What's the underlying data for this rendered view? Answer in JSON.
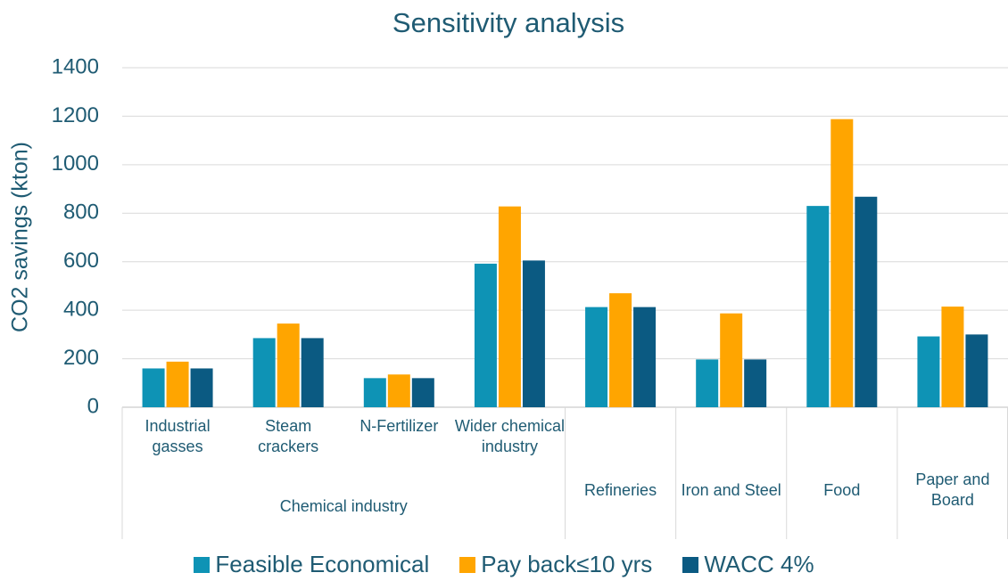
{
  "chart_data": {
    "type": "bar",
    "title": "Sensitivity analysis",
    "y_label": "CO2 savings (kton)",
    "categories": [
      "Industrial gasses",
      "Steam crackers",
      "N-Fertilizer",
      "Wider chemical industry",
      "Refineries",
      "Iron and Steel",
      "Food",
      "Paper and Board"
    ],
    "category_groups": [
      "Chemical industry",
      "Chemical industry",
      "Chemical industry",
      "Chemical industry",
      null,
      null,
      null,
      null
    ],
    "series": [
      {
        "name": "Feasible Economical",
        "color": "#0e93b5",
        "values": [
          160,
          285,
          120,
          592,
          413,
          197,
          830,
          292
        ]
      },
      {
        "name": "Pay back≤10 yrs",
        "color": "#ffa500",
        "values": [
          188,
          345,
          135,
          828,
          470,
          387,
          1188,
          415
        ]
      },
      {
        "name": "WACC 4%",
        "color": "#0b5a82",
        "values": [
          160,
          285,
          120,
          605,
          413,
          197,
          868,
          300
        ]
      }
    ],
    "ylim": [
      0,
      1400
    ],
    "yticks": [
      0,
      200,
      400,
      600,
      800,
      1000,
      1200,
      1400
    ],
    "grid": true
  }
}
